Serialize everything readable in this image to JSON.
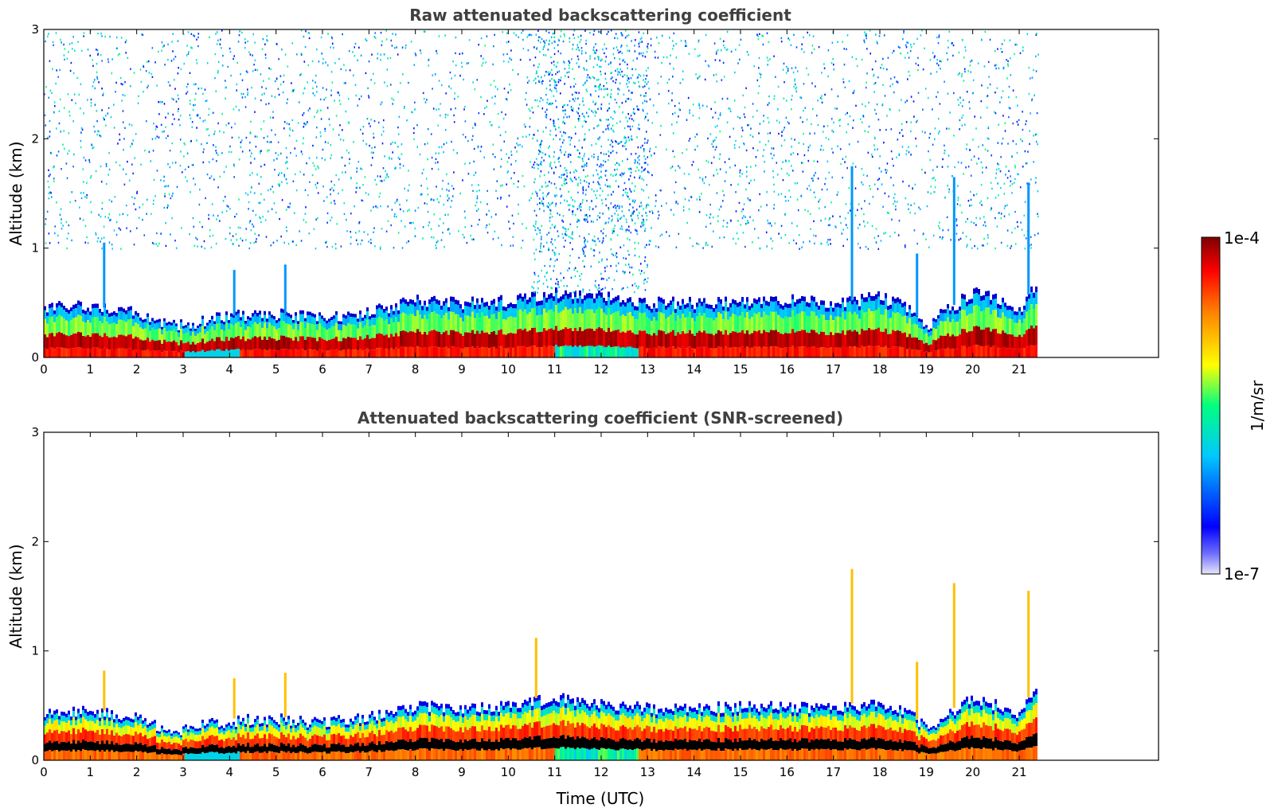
{
  "chart_data": [
    {
      "type": "heatmap",
      "title": "Raw attenuated backscattering coefficient",
      "xlabel": "",
      "ylabel": "Altitude (km)",
      "xlim": [
        0,
        24
      ],
      "ylim": [
        0,
        3
      ],
      "x_ticks": [
        0,
        1,
        2,
        3,
        4,
        5,
        6,
        7,
        8,
        9,
        10,
        11,
        12,
        13,
        14,
        15,
        16,
        17,
        18,
        19,
        20,
        21
      ],
      "y_ticks": [
        0,
        1,
        2,
        3
      ],
      "data_end_hour": 21.4,
      "boundary_layer_top_km": [
        {
          "x": 0,
          "y": 0.45
        },
        {
          "x": 1,
          "y": 0.48
        },
        {
          "x": 2,
          "y": 0.4
        },
        {
          "x": 2.7,
          "y": 0.28
        },
        {
          "x": 4,
          "y": 0.38
        },
        {
          "x": 5,
          "y": 0.4
        },
        {
          "x": 6,
          "y": 0.36
        },
        {
          "x": 7,
          "y": 0.42
        },
        {
          "x": 8,
          "y": 0.52
        },
        {
          "x": 9,
          "y": 0.5
        },
        {
          "x": 10,
          "y": 0.52
        },
        {
          "x": 11,
          "y": 0.6
        },
        {
          "x": 12,
          "y": 0.55
        },
        {
          "x": 13,
          "y": 0.5
        },
        {
          "x": 14,
          "y": 0.5
        },
        {
          "x": 15,
          "y": 0.52
        },
        {
          "x": 16,
          "y": 0.52
        },
        {
          "x": 17,
          "y": 0.5
        },
        {
          "x": 18,
          "y": 0.55
        },
        {
          "x": 18.6,
          "y": 0.45
        },
        {
          "x": 19,
          "y": 0.3
        },
        {
          "x": 20,
          "y": 0.6
        },
        {
          "x": 21,
          "y": 0.45
        },
        {
          "x": 21.4,
          "y": 0.7
        }
      ],
      "plume_spikes": [
        {
          "x": 1.3,
          "top": 1.05
        },
        {
          "x": 4.1,
          "top": 0.8
        },
        {
          "x": 5.2,
          "top": 0.85
        },
        {
          "x": 17.4,
          "top": 1.75
        },
        {
          "x": 18.8,
          "top": 0.95
        },
        {
          "x": 19.6,
          "top": 1.65
        },
        {
          "x": 21.2,
          "top": 1.6
        }
      ],
      "noise_regions": [
        {
          "x0": 0,
          "x1": 21.4,
          "y0": 1.0,
          "y1": 3.0,
          "density": 0.35
        },
        {
          "x0": 10.5,
          "x1": 13,
          "y0": 0.6,
          "y1": 3.0,
          "density": 0.7
        }
      ]
    },
    {
      "type": "heatmap",
      "title": "Attenuated backscattering coefficient (SNR-screened)",
      "xlabel": "Time (UTC)",
      "ylabel": "Altitude (km)",
      "xlim": [
        0,
        24
      ],
      "ylim": [
        0,
        3
      ],
      "x_ticks": [
        0,
        1,
        2,
        3,
        4,
        5,
        6,
        7,
        8,
        9,
        10,
        11,
        12,
        13,
        14,
        15,
        16,
        17,
        18,
        19,
        20,
        21
      ],
      "y_ticks": [
        0,
        1,
        2,
        3
      ],
      "data_end_hour": 21.4,
      "plume_spikes": [
        {
          "x": 1.3,
          "top": 0.82
        },
        {
          "x": 4.1,
          "top": 0.75
        },
        {
          "x": 5.2,
          "top": 0.8
        },
        {
          "x": 10.6,
          "top": 1.12
        },
        {
          "x": 17.4,
          "top": 1.75
        },
        {
          "x": 18.8,
          "top": 0.9
        },
        {
          "x": 19.6,
          "top": 1.62
        },
        {
          "x": 21.2,
          "top": 1.55
        }
      ]
    }
  ],
  "colorbar": {
    "max_label": "1e-4",
    "min_label": "1e-7",
    "unit_label": "1/m/sr",
    "colormap": "jet",
    "colors": [
      "#e6e6fa",
      "#0000ff",
      "#00bfff",
      "#00ff7f",
      "#ffff00",
      "#ff8000",
      "#ff0000",
      "#7f0000"
    ]
  }
}
